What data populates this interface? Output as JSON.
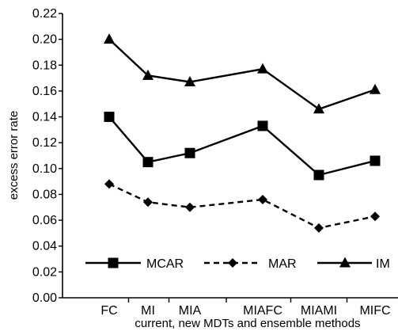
{
  "chart_data": {
    "type": "line",
    "title": "",
    "xlabel": "current, new MDTs and ensemble methods",
    "ylabel": "excess error rate",
    "categories": [
      "FC",
      "MI",
      "MIA",
      "MIAFC",
      "MIAMI",
      "MIFC"
    ],
    "ylim": [
      0.0,
      0.22
    ],
    "yticks": [
      "0.00",
      "0.02",
      "0.04",
      "0.06",
      "0.08",
      "0.10",
      "0.12",
      "0.14",
      "0.16",
      "0.18",
      "0.20",
      "0.22"
    ],
    "grid": false,
    "legend_position": "bottom",
    "series": [
      {
        "name": "MCAR",
        "values": [
          0.14,
          0.105,
          0.112,
          0.133,
          0.095,
          0.106
        ],
        "marker": "square",
        "line_style": "solid",
        "color": "#000000"
      },
      {
        "name": "MAR",
        "values": [
          0.088,
          0.074,
          0.07,
          0.076,
          0.054,
          0.063
        ],
        "marker": "diamond",
        "line_style": "dashed",
        "color": "#000000"
      },
      {
        "name": "IM",
        "values": [
          0.2,
          0.172,
          0.167,
          0.177,
          0.146,
          0.161
        ],
        "marker": "triangle",
        "line_style": "solid",
        "color": "#000000"
      }
    ]
  }
}
